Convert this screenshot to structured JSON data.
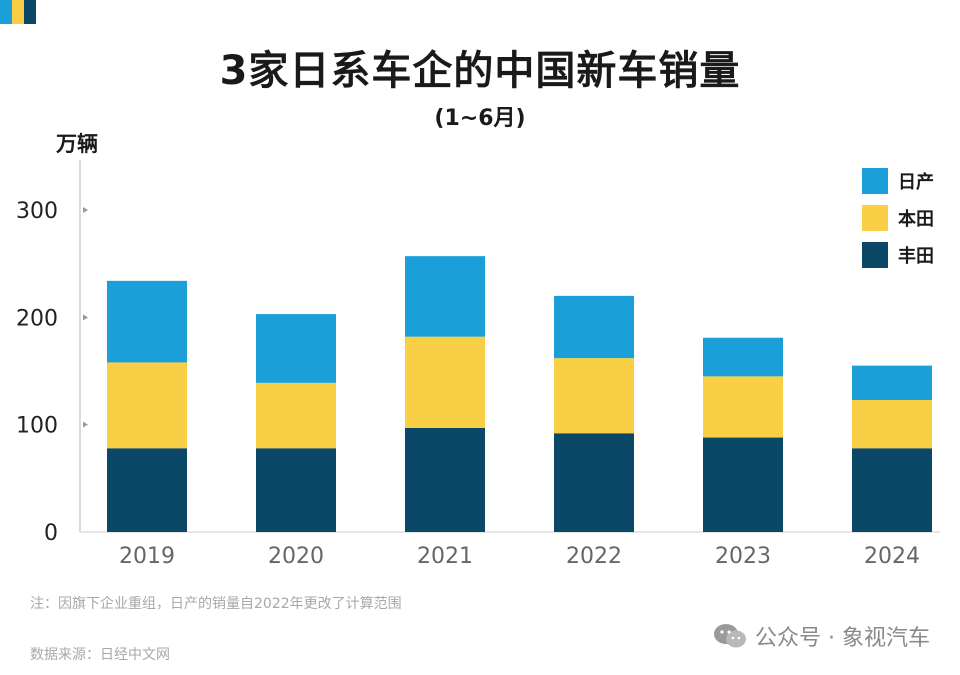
{
  "colors": {
    "nissan": "#1a9fd8",
    "honda": "#f8cf45",
    "toyota": "#0b4766",
    "corner": [
      "#1a9fd8",
      "#f8cf45",
      "#0b4766"
    ]
  },
  "header": {
    "title": "3家日系车企的中国新车销量",
    "subtitle": "(1~6月)",
    "unit": "万辆"
  },
  "chart_data": {
    "type": "bar",
    "stacked": true,
    "title": "3家日系车企的中国新车销量",
    "subtitle": "(1~6月)",
    "ylabel": "万辆",
    "ylim": [
      0,
      350
    ],
    "yticks": [
      0,
      100,
      200,
      300
    ],
    "grid": false,
    "legend_position": "top-right",
    "categories": [
      "2019",
      "2020",
      "2021",
      "2022",
      "2023",
      "2024"
    ],
    "series": [
      {
        "name": "丰田",
        "color": "#0b4766",
        "values": [
          78,
          78,
          97,
          92,
          88,
          78
        ]
      },
      {
        "name": "本田",
        "color": "#f8cf45",
        "values": [
          80,
          61,
          85,
          70,
          57,
          45
        ]
      },
      {
        "name": "日产",
        "color": "#1a9fd8",
        "values": [
          76,
          64,
          75,
          58,
          36,
          32
        ]
      }
    ],
    "legend_order": [
      "日产",
      "本田",
      "丰田"
    ]
  },
  "footer": {
    "note": "注：因旗下企业重组，日产的销量自2022年更改了计算范围",
    "source": "数据来源：日经中文网",
    "watermark": "公众号 · 象视汽车"
  }
}
